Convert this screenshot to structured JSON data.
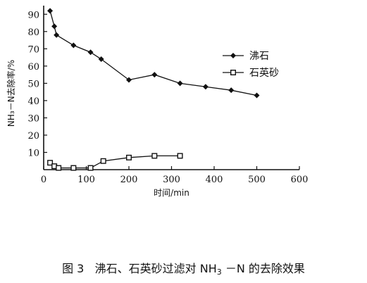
{
  "chart_data": {
    "type": "line",
    "xlabel": "时间/min",
    "ylabel": "NH₃－N去除率/%",
    "xlim": [
      0,
      600
    ],
    "ylim": [
      0,
      95
    ],
    "xticks": [
      "0",
      "100",
      "200",
      "300",
      "400",
      "500",
      "600"
    ],
    "yticks": [
      "10",
      "20",
      "30",
      "40",
      "50",
      "60",
      "70",
      "80",
      "90"
    ],
    "grid": false,
    "legend_position": "right",
    "series": [
      {
        "name": "沸石",
        "marker": "diamond-filled",
        "x": [
          15,
          25,
          30,
          70,
          110,
          135,
          200,
          260,
          320,
          380,
          440,
          500
        ],
        "y": [
          92,
          83,
          78,
          72,
          68,
          64,
          52,
          55,
          50,
          48,
          46,
          43
        ]
      },
      {
        "name": "石英砂",
        "marker": "square-open",
        "x": [
          15,
          25,
          35,
          70,
          110,
          140,
          200,
          260,
          320
        ],
        "y": [
          4,
          2,
          1,
          1,
          1,
          5,
          7,
          8,
          8
        ]
      }
    ]
  },
  "caption": {
    "figure_label": "图 3",
    "text_before": "沸石、石英砂过滤对 NH",
    "subscript": "3",
    "text_after": " －N 的去除效果"
  }
}
